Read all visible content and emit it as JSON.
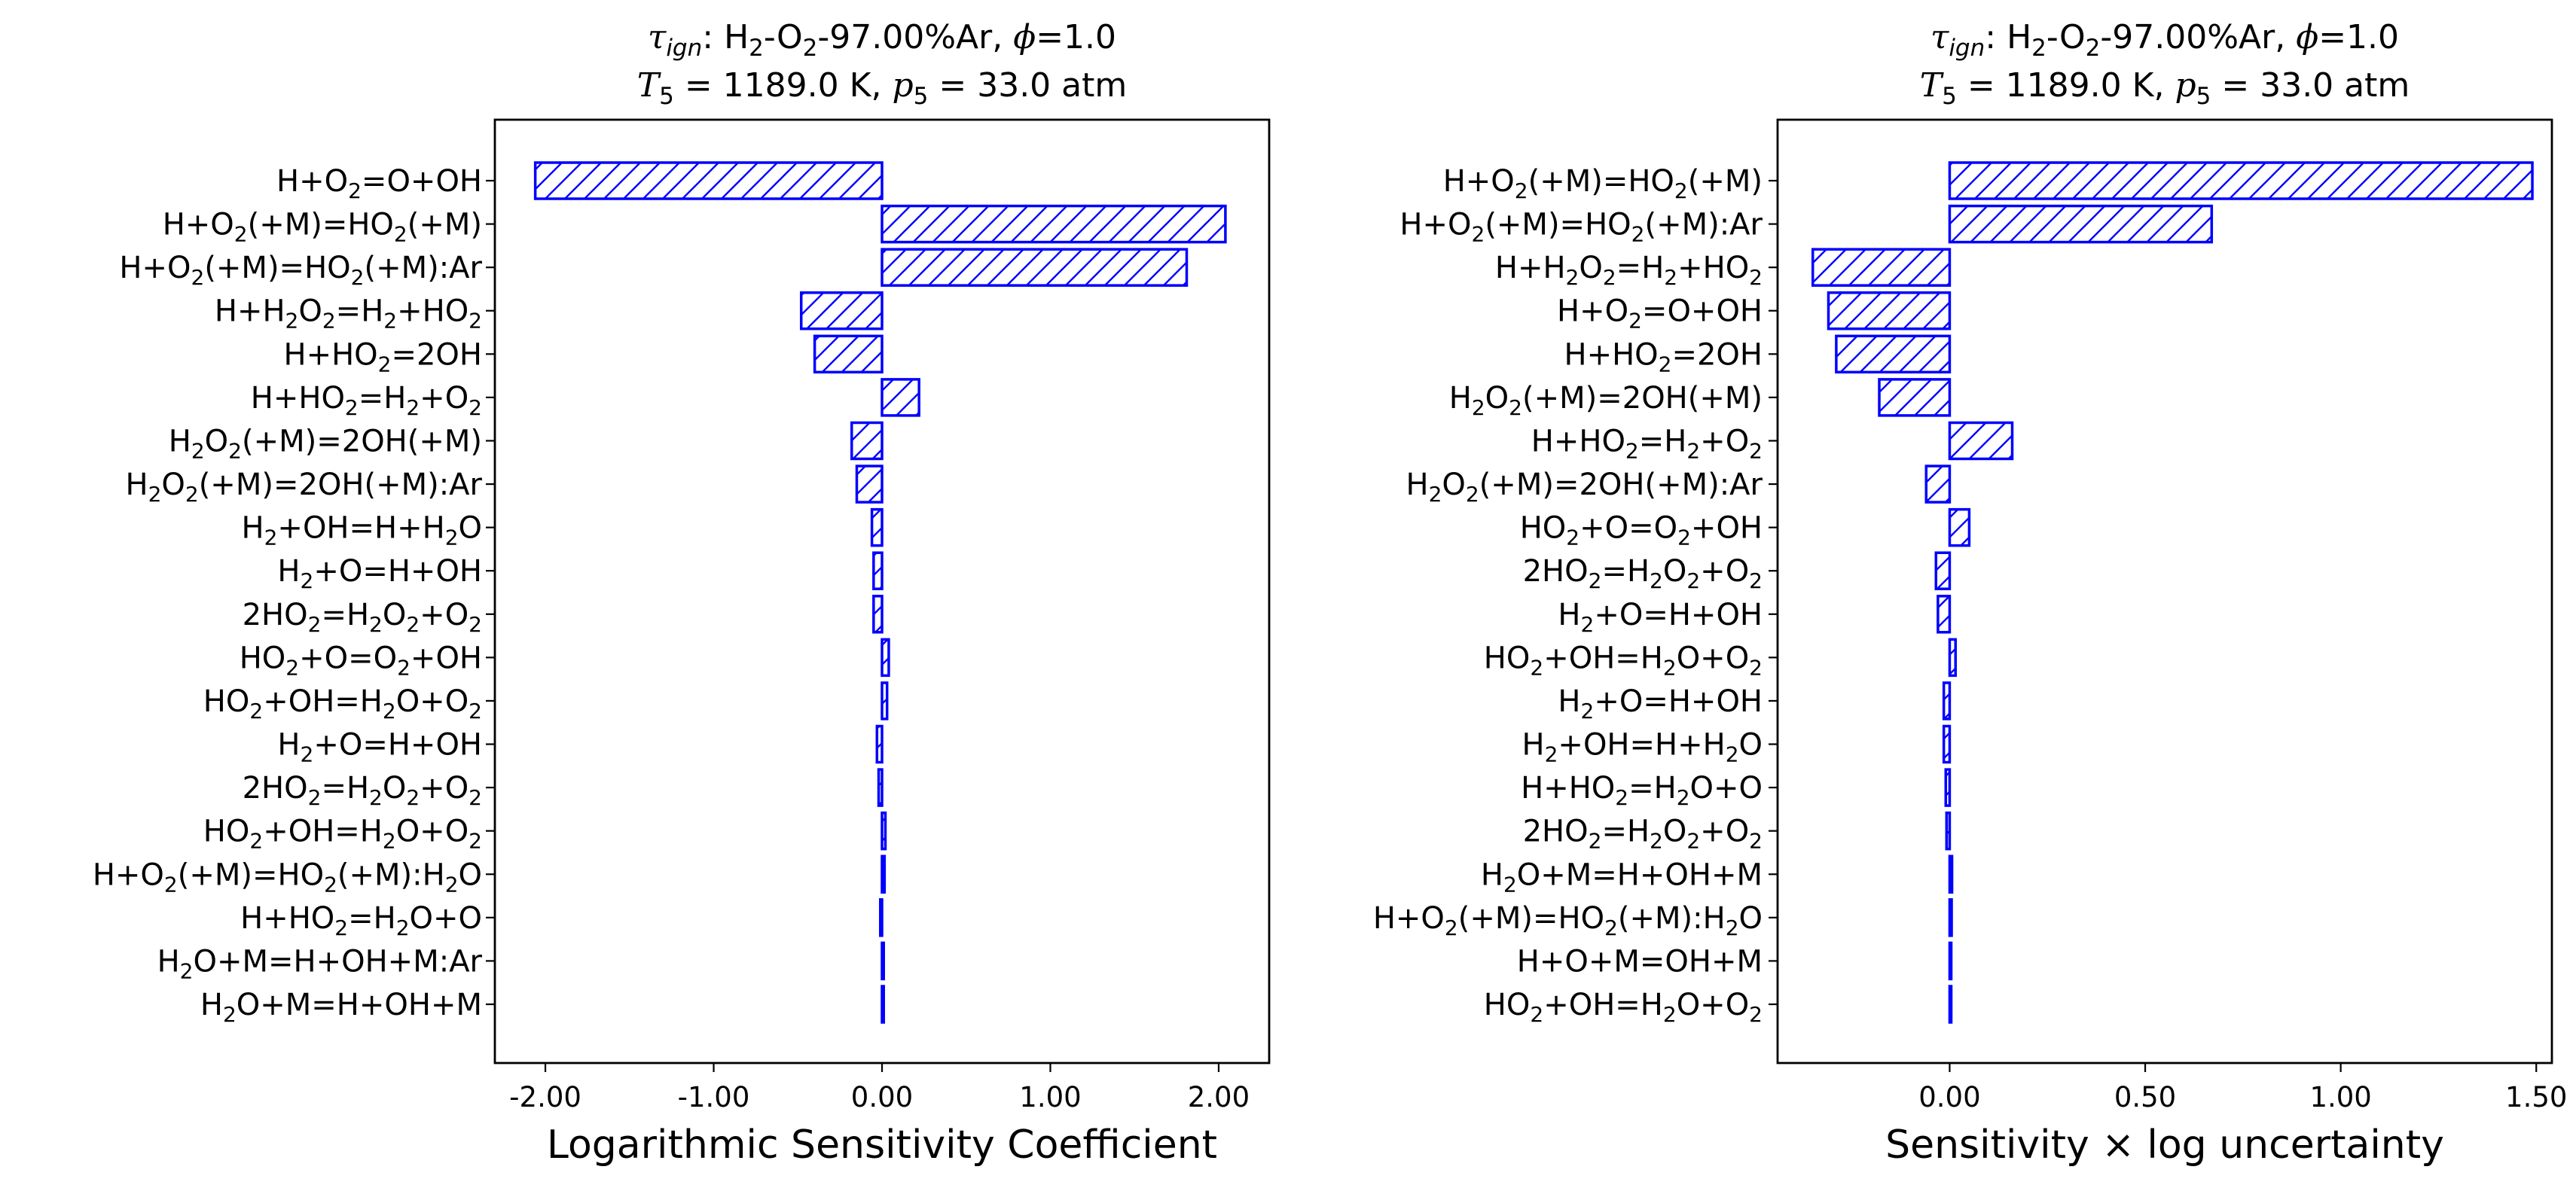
{
  "chart_data": [
    {
      "type": "bar",
      "orientation": "horizontal",
      "title_line1": {
        "tau": "τ",
        "tau_sub": "ign",
        "pre": ": H",
        "s1": "2",
        "mid1": "-O",
        "s2": "2",
        "mid2": "-97.00%Ar, ",
        "phi": "ϕ",
        "post": "=1.0"
      },
      "title_line2": {
        "T": "T",
        "T_sub": "5",
        "mid": " = 1189.0 K, ",
        "p": "p",
        "p_sub": "5",
        "post": " = 33.0 atm"
      },
      "xlabel": "Logarithmic Sensitivity Coefficient",
      "xlim": [
        -2.3,
        2.3
      ],
      "xticks": [
        -2.0,
        -1.0,
        0.0,
        1.0,
        2.0
      ],
      "xtick_labels": [
        "-2.00",
        "-1.00",
        "0.00",
        "1.00",
        "2.00"
      ],
      "bar_color": "#0000ff",
      "hatch": "diagonal",
      "categories": [
        "H+O_{2}=O+OH",
        "H+O_{2}(+M)=HO_{2}(+M)",
        "H+O_{2}(+M)=HO_{2}(+M):Ar",
        "H+H_{2}O_{2}=H_{2}+HO_{2}",
        "H+HO_{2}=2OH",
        "H+HO_{2}=H_{2}+O_{2}",
        "H_{2}O_{2}(+M)=2OH(+M)",
        "H_{2}O_{2}(+M)=2OH(+M):Ar",
        "H_{2}+OH=H+H_{2}O",
        "H_{2}+O=H+OH",
        "2HO_{2}=H_{2}O_{2}+O_{2}",
        "HO_{2}+O=O_{2}+OH",
        "HO_{2}+OH=H_{2}O+O_{2}",
        "H_{2}+O=H+OH",
        "2HO_{2}=H_{2}O_{2}+O_{2}",
        "HO_{2}+OH=H_{2}O+O_{2}",
        "H+O_{2}(+M)=HO_{2}(+M):H_{2}O",
        "H+HO_{2}=H_{2}O+O",
        "H_{2}O+M=H+OH+M:Ar",
        "H_{2}O+M=H+OH+M"
      ],
      "values": [
        -2.06,
        2.04,
        1.81,
        -0.48,
        -0.4,
        0.22,
        -0.18,
        -0.15,
        -0.06,
        -0.05,
        -0.05,
        0.04,
        0.03,
        -0.03,
        -0.02,
        0.02,
        0.015,
        -0.01,
        0.01,
        0.01
      ]
    },
    {
      "type": "bar",
      "orientation": "horizontal",
      "title_line1": {
        "tau": "τ",
        "tau_sub": "ign",
        "pre": ": H",
        "s1": "2",
        "mid1": "-O",
        "s2": "2",
        "mid2": "-97.00%Ar, ",
        "phi": "ϕ",
        "post": "=1.0"
      },
      "title_line2": {
        "T": "T",
        "T_sub": "5",
        "mid": " = 1189.0 K, ",
        "p": "p",
        "p_sub": "5",
        "post": " = 33.0 atm"
      },
      "xlabel": "Sensitivity × log uncertainty",
      "xlim": [
        -0.44,
        1.54
      ],
      "xticks": [
        0.0,
        0.5,
        1.0,
        1.5
      ],
      "xtick_labels": [
        "0.00",
        "0.50",
        "1.00",
        "1.50"
      ],
      "bar_color": "#0000ff",
      "hatch": "diagonal",
      "categories": [
        "H+O_{2}(+M)=HO_{2}(+M)",
        "H+O_{2}(+M)=HO_{2}(+M):Ar",
        "H+H_{2}O_{2}=H_{2}+HO_{2}",
        "H+O_{2}=O+OH",
        "H+HO_{2}=2OH",
        "H_{2}O_{2}(+M)=2OH(+M)",
        "H+HO_{2}=H_{2}+O_{2}",
        "H_{2}O_{2}(+M)=2OH(+M):Ar",
        "HO_{2}+O=O_{2}+OH",
        "2HO_{2}=H_{2}O_{2}+O_{2}",
        "H_{2}+O=H+OH",
        "HO_{2}+OH=H_{2}O+O_{2}",
        "H_{2}+O=H+OH",
        "H_{2}+OH=H+H_{2}O",
        "H+HO_{2}=H_{2}O+O",
        "2HO_{2}=H_{2}O_{2}+O_{2}",
        "H_{2}O+M=H+OH+M",
        "H+O_{2}(+M)=HO_{2}(+M):H_{2}O",
        "H+O+M=OH+M",
        "HO_{2}+OH=H_{2}O+O_{2}"
      ],
      "values": [
        1.49,
        0.67,
        -0.35,
        -0.31,
        -0.29,
        -0.18,
        0.16,
        -0.06,
        0.05,
        -0.035,
        -0.03,
        0.015,
        -0.015,
        -0.015,
        -0.01,
        -0.008,
        0.006,
        0.005,
        0.004,
        0.004
      ]
    }
  ]
}
